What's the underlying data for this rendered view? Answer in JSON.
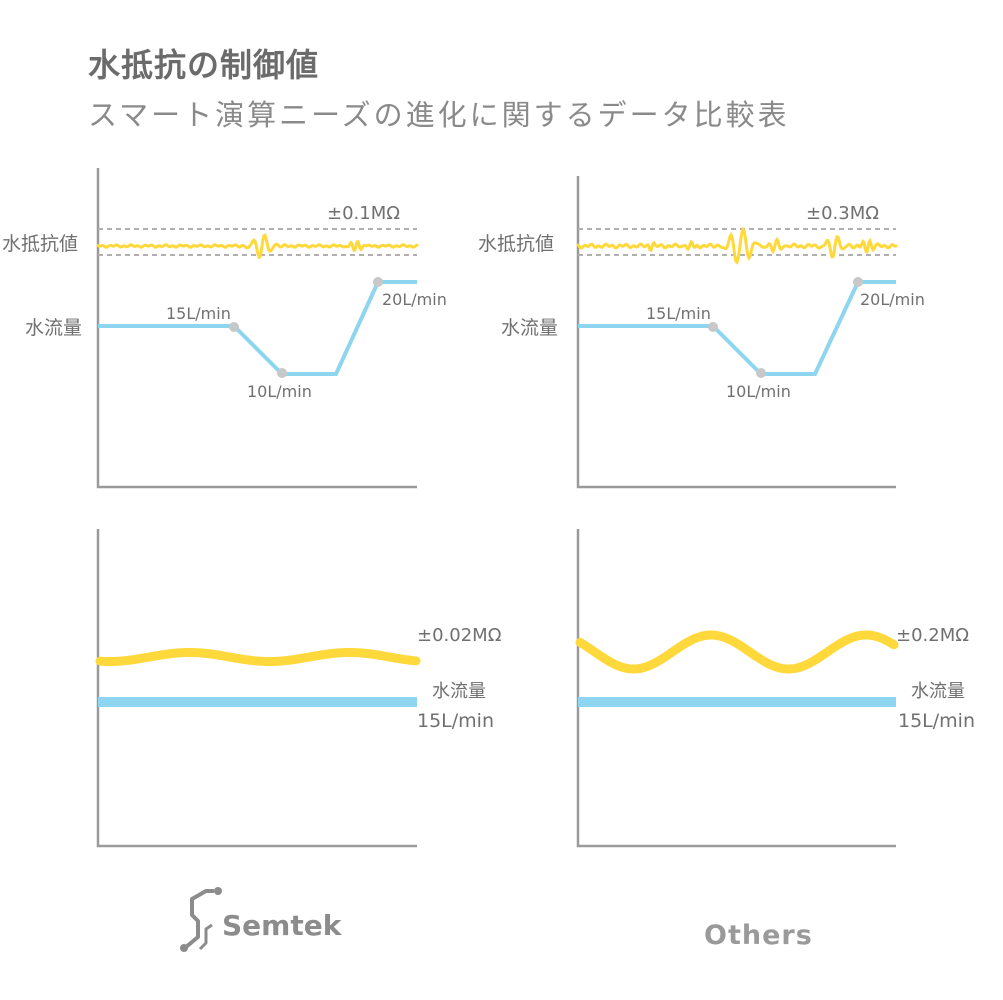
{
  "title": "水抵抗の制御値",
  "subtitle": "スマート演算ニーズの進化に関するデータ比較表",
  "colors": {
    "resistance": "#FFD93B",
    "flow": "#8ED6F0",
    "axis": "#9a9a9a",
    "dash": "#b0b0b0",
    "marker": "#c8c8c8"
  },
  "brands": {
    "left": "Semtek",
    "right": "Others",
    "left_logo_icon": "semtek-logo-icon"
  },
  "chart_data": [
    {
      "type": "line",
      "panel": "semtek-top",
      "label_resistance": "水抵抗値",
      "label_flow": "水流量",
      "tolerance": "±0.1MΩ",
      "flow_points": [
        {
          "label": "15L/min"
        },
        {
          "label": "10L/min"
        },
        {
          "label": "20L/min"
        }
      ],
      "noise_amplitude": "low"
    },
    {
      "type": "line",
      "panel": "others-top",
      "label_resistance": "水抵抗値",
      "label_flow": "水流量",
      "tolerance": "±0.3MΩ",
      "flow_points": [
        {
          "label": "15L/min"
        },
        {
          "label": "10L/min"
        },
        {
          "label": "20L/min"
        }
      ],
      "noise_amplitude": "high"
    },
    {
      "type": "line",
      "panel": "semtek-bottom",
      "tolerance": "±0.02MΩ",
      "flow_label": "水流量",
      "flow_value": "15L/min",
      "wave_amplitude": "low"
    },
    {
      "type": "line",
      "panel": "others-bottom",
      "tolerance": "±0.2MΩ",
      "flow_label": "水流量",
      "flow_value": "15L/min",
      "wave_amplitude": "high"
    }
  ]
}
